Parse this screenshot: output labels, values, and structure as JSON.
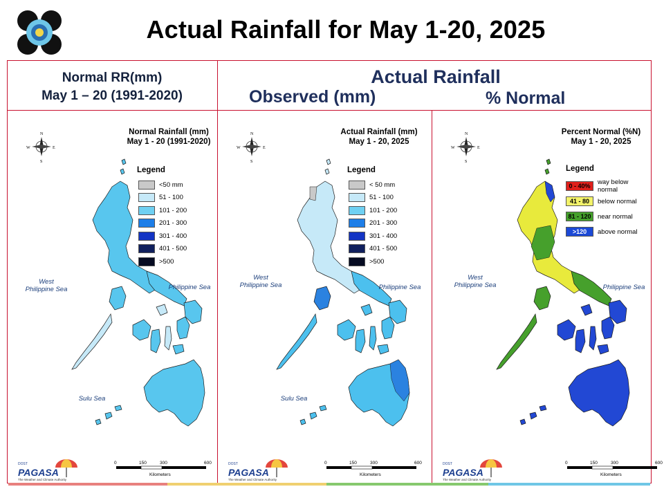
{
  "title": "Actual Rainfall for May 1-20, 2025",
  "headers": {
    "normal_line1": "Normal RR(mm)",
    "normal_line2": "May 1 – 20 (1991-2020)",
    "actual": "Actual Rainfall",
    "observed": "Observed (mm)",
    "percent": "% Normal"
  },
  "panels": [
    {
      "title_line1": "Normal Rainfall (mm)",
      "title_line2": "May 1 - 20  (1991-2020)",
      "legend_title": "Legend",
      "legend": [
        {
          "label": "<50 mm",
          "color": "#c9c9c9"
        },
        {
          "label": "51 - 100",
          "color": "#c6e9f8"
        },
        {
          "label": "101 - 200",
          "color": "#6fd0f2"
        },
        {
          "label": "201 - 300",
          "color": "#1d7ee8"
        },
        {
          "label": "301 - 400",
          "color": "#1334c4"
        },
        {
          "label": "401 - 500",
          "color": "#10205e"
        },
        {
          "label": ">500",
          "color": "#060b22"
        }
      ],
      "seas": {
        "west_line1": "West",
        "west_line2": "Philippine Sea",
        "east": "Philippine Sea",
        "south": "Sulu Sea"
      }
    },
    {
      "title_line1": "Actual Rainfall (mm)",
      "title_line2": "May 1 - 20, 2025",
      "legend_title": "Legend",
      "legend": [
        {
          "label": "< 50 mm",
          "color": "#c9c9c9"
        },
        {
          "label": "51 - 100",
          "color": "#c6e9f8"
        },
        {
          "label": "101 - 200",
          "color": "#6fd0f2"
        },
        {
          "label": "201 - 300",
          "color": "#1d7ee8"
        },
        {
          "label": "301 - 400",
          "color": "#1334c4"
        },
        {
          "label": "401 - 500",
          "color": "#10205e"
        },
        {
          "label": ">500",
          "color": "#060b22"
        }
      ],
      "seas": {
        "west_line1": "West",
        "west_line2": "Philippine Sea",
        "east": "Philippine Sea",
        "south": "Sulu Sea"
      }
    },
    {
      "title_line1": "Percent Normal (%N)",
      "title_line2": "May 1 - 20, 2025",
      "legend_title": "Legend",
      "legend": [
        {
          "range": "0 - 40%",
          "label": "way below normal",
          "color": "#e0201b",
          "text_color": "#000000"
        },
        {
          "range": "41 - 80",
          "label": "below normal",
          "color": "#f3f36a",
          "text_color": "#000000"
        },
        {
          "range": "81 - 120",
          "label": "near normal",
          "color": "#44a02b",
          "text_color": "#000000"
        },
        {
          "range": ">120",
          "label": "above normal",
          "color": "#1b49d6",
          "text_color": "#ffffff"
        }
      ],
      "seas": {
        "west_line1": "West",
        "west_line2": "Philippine Sea",
        "east": "Philippine Sea",
        "south": ""
      }
    }
  ],
  "scale": {
    "ticks": [
      "0",
      "150",
      "300",
      "600"
    ],
    "unit": "Kilometers"
  },
  "compass": {
    "n": "N",
    "e": "E",
    "s": "S",
    "w": "W"
  },
  "branding": {
    "org": "PAGASA",
    "tagline": "The Weather and Climate Authority",
    "since": "DOST"
  },
  "colors": {
    "frame": "#c8102e",
    "map_normal_main": "#58c6ee",
    "map_normal_light": "#c6e9f8",
    "map_actual_main": "#4cc0ee",
    "map_actual_dark": "#2b82e0",
    "map_pct_blue": "#2248d4",
    "map_pct_green": "#46a02c",
    "map_pct_yellow": "#e8ea3c",
    "footer": [
      "#e8807e",
      "#f0d070",
      "#86c96e",
      "#6fc7e6"
    ]
  }
}
